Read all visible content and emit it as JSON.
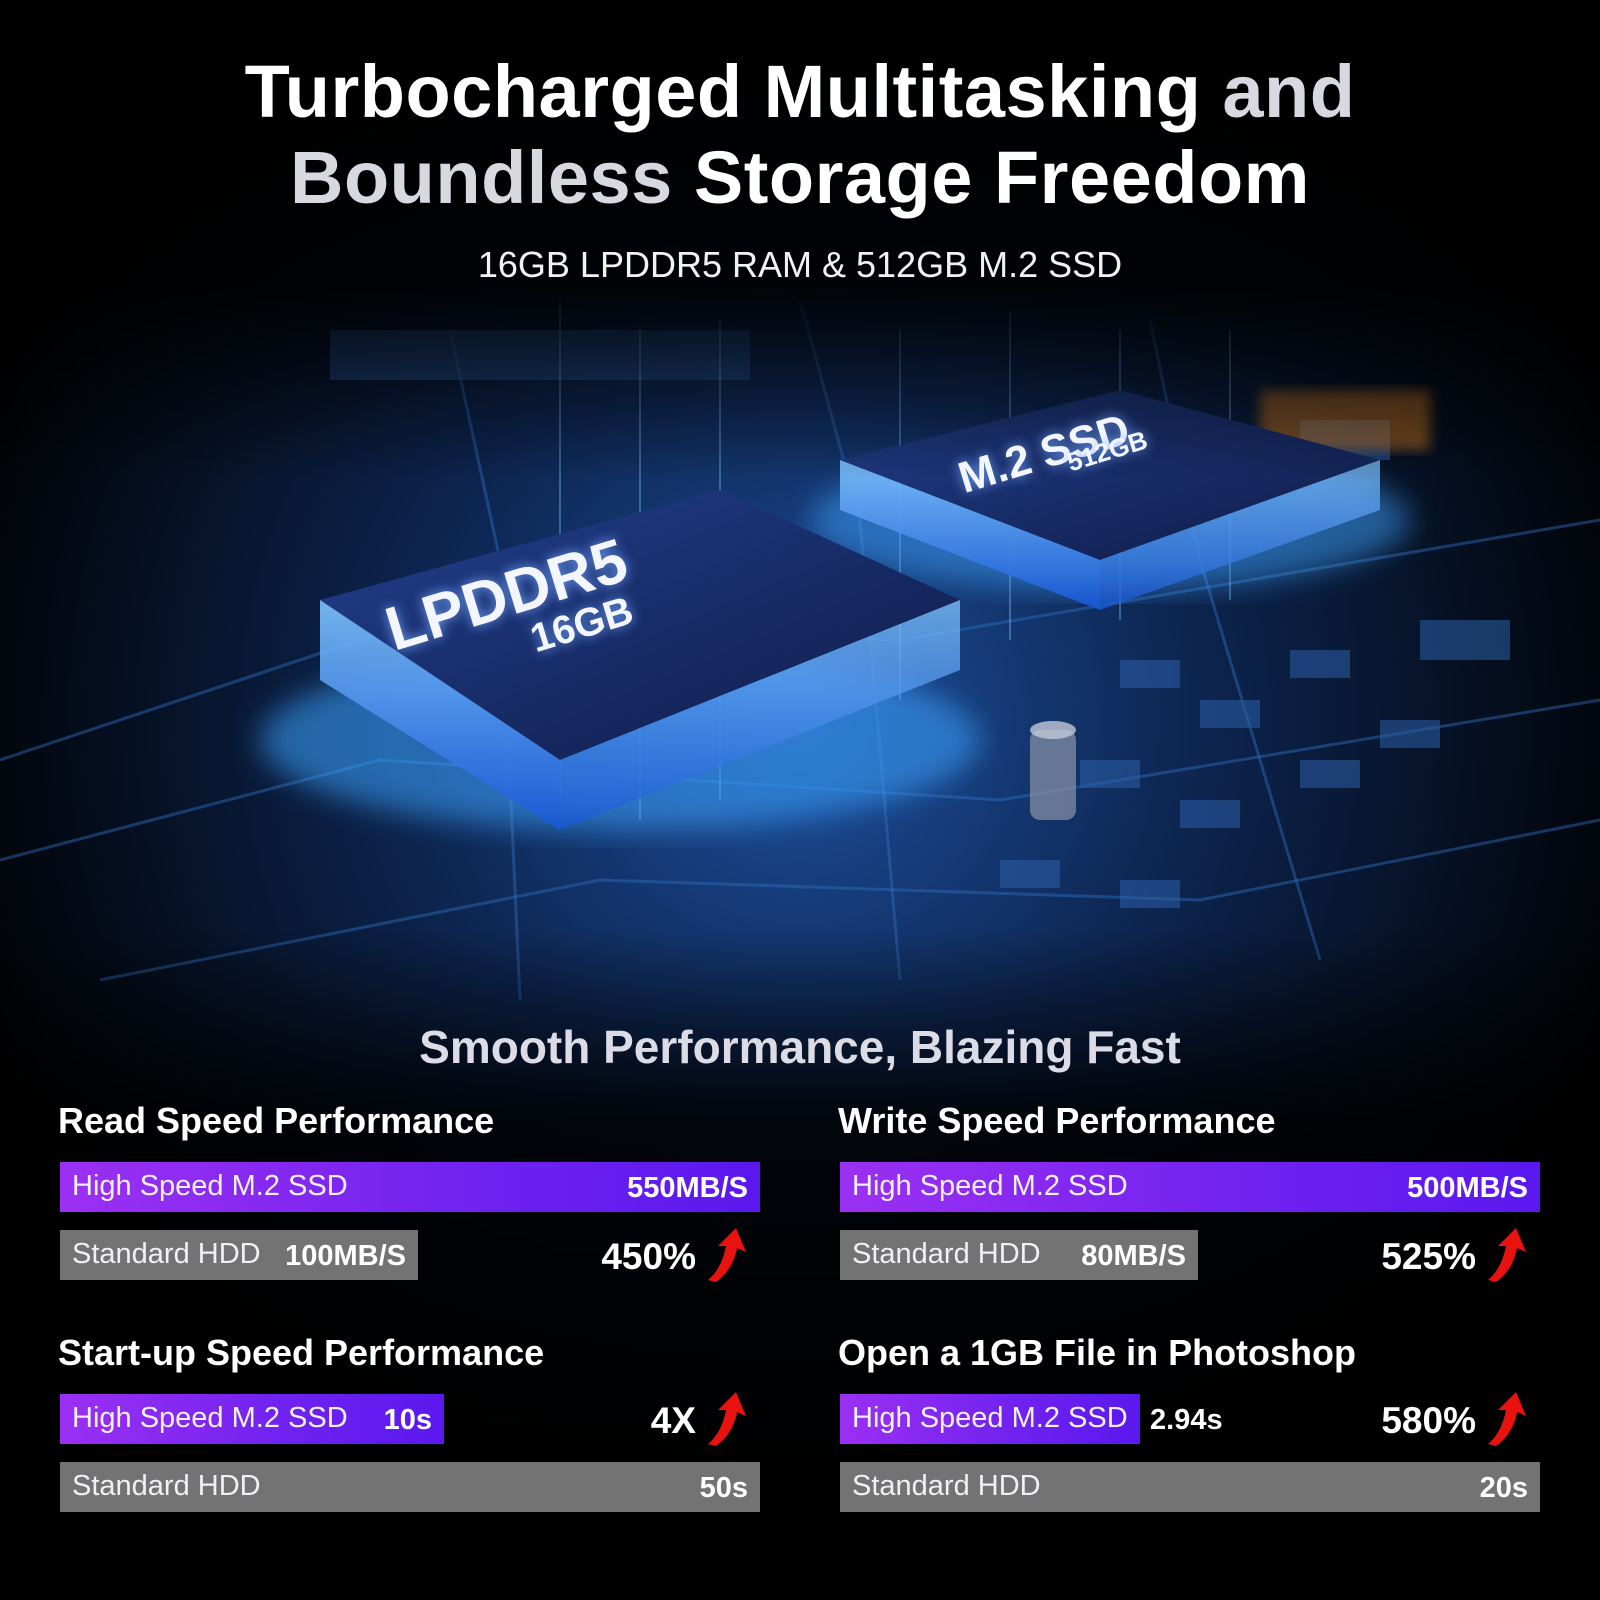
{
  "header": {
    "title_line1_a": "Turbocharged Multitasking",
    "title_line1_b": "and",
    "title_line2_a": "Boundless",
    "title_line2_b": "Storage Freedom",
    "subtitle": "16GB LPDDR5 RAM & 512GB M.2 SSD"
  },
  "hero": {
    "ram_chip_label": "LPDDR5",
    "ram_chip_capacity": "16GB",
    "ssd_chip_label": "M.2 SSD",
    "ssd_chip_capacity": "512GB"
  },
  "performance_heading": "Smooth Performance, Blazing Fast",
  "colors": {
    "ssd_bar": "#7a26f0",
    "hdd_bar": "#737373",
    "arrow": "#e8130f",
    "background": "#000000"
  },
  "chart_data": [
    {
      "type": "bar",
      "title": "Read Speed Performance",
      "higher_is_better": true,
      "bars": [
        {
          "label": "High Speed M.2 SSD",
          "value": 550,
          "display": "550MB/S"
        },
        {
          "label": "Standard HDD",
          "value": 100,
          "display": "100MB/S"
        }
      ],
      "improvement": "450%"
    },
    {
      "type": "bar",
      "title": "Write Speed Performance",
      "higher_is_better": true,
      "bars": [
        {
          "label": "High Speed M.2 SSD",
          "value": 500,
          "display": "500MB/S"
        },
        {
          "label": "Standard HDD",
          "value": 80,
          "display": "80MB/S"
        }
      ],
      "improvement": "525%"
    },
    {
      "type": "bar",
      "title": "Start-up Speed Performance",
      "higher_is_better": false,
      "bars": [
        {
          "label": "High Speed M.2 SSD",
          "value": 10,
          "display": "10s"
        },
        {
          "label": "Standard HDD",
          "value": 50,
          "display": "50s"
        }
      ],
      "improvement": "4X"
    },
    {
      "type": "bar",
      "title": "Open a 1GB File in Photoshop",
      "higher_is_better": false,
      "bars": [
        {
          "label": "High Speed M.2 SSD",
          "value": 2.94,
          "display": "2.94s"
        },
        {
          "label": "Standard HDD",
          "value": 20,
          "display": "20s"
        }
      ],
      "improvement": "580%"
    }
  ]
}
